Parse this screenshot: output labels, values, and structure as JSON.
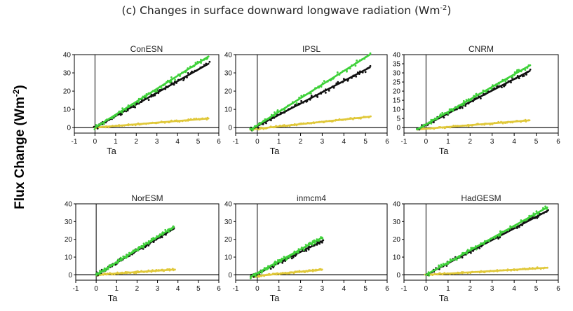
{
  "figure": {
    "title": "(c) Changes in surface downward longwave radiation (Wm",
    "title_sup": "-2",
    "title_end": ")",
    "ylabel": "Flux Change (Wm",
    "ylabel_sup": "-2",
    "ylabel_end": ")"
  },
  "colors": {
    "green": "#3fd13a",
    "black": "#111111",
    "yellow": "#e0c83a",
    "axis": "#000000"
  },
  "chart_data": [
    {
      "type": "scatter",
      "title": "ConESN",
      "xlabel": "Ta",
      "xlim": [
        -1,
        6
      ],
      "ylim": [
        -3,
        40
      ],
      "xticks": [
        -1,
        0,
        1,
        2,
        3,
        4,
        5,
        6
      ],
      "yticks": [
        0,
        10,
        20,
        30,
        40
      ],
      "series": [
        {
          "color": "green",
          "x": [
            0,
            5.5
          ],
          "y": [
            0,
            39
          ]
        },
        {
          "color": "black",
          "x": [
            0,
            5.5
          ],
          "y": [
            0,
            35
          ]
        },
        {
          "color": "yellow",
          "x": [
            0,
            5.5
          ],
          "y": [
            0,
            5
          ]
        }
      ]
    },
    {
      "type": "scatter",
      "title": "IPSL",
      "xlabel": "Ta",
      "xlim": [
        -1,
        6
      ],
      "ylim": [
        -3,
        40
      ],
      "xticks": [
        -1,
        0,
        1,
        2,
        3,
        4,
        5,
        6
      ],
      "yticks": [
        0,
        10,
        20,
        30,
        40
      ],
      "series": [
        {
          "color": "green",
          "x": [
            -0.3,
            5.2
          ],
          "y": [
            -1,
            40
          ]
        },
        {
          "color": "black",
          "x": [
            -0.3,
            5.2
          ],
          "y": [
            -1,
            33
          ]
        },
        {
          "color": "yellow",
          "x": [
            -0.3,
            5.2
          ],
          "y": [
            -1,
            6
          ]
        }
      ]
    },
    {
      "type": "scatter",
      "title": "CNRM",
      "xlabel": "Ta",
      "xlim": [
        -1,
        6
      ],
      "ylim": [
        -3,
        40
      ],
      "xticks": [
        -1,
        0,
        1,
        2,
        3,
        4,
        5,
        6
      ],
      "yticks": [
        0,
        5,
        10,
        15,
        20,
        25,
        30,
        35,
        40
      ],
      "series": [
        {
          "color": "green",
          "x": [
            -0.4,
            4.7
          ],
          "y": [
            -1,
            34
          ]
        },
        {
          "color": "black",
          "x": [
            -0.4,
            4.7
          ],
          "y": [
            -1,
            31
          ]
        },
        {
          "color": "yellow",
          "x": [
            -0.4,
            4.7
          ],
          "y": [
            -1,
            4
          ]
        }
      ]
    },
    {
      "type": "scatter",
      "title": "NorESM",
      "xlabel": "Ta",
      "xlim": [
        -1,
        6
      ],
      "ylim": [
        -3,
        40
      ],
      "xticks": [
        -1,
        0,
        1,
        2,
        3,
        4,
        5,
        6
      ],
      "yticks": [
        0,
        10,
        20,
        30,
        40
      ],
      "series": [
        {
          "color": "green",
          "x": [
            0,
            3.8
          ],
          "y": [
            0,
            27
          ]
        },
        {
          "color": "black",
          "x": [
            0,
            3.8
          ],
          "y": [
            0,
            26
          ]
        },
        {
          "color": "yellow",
          "x": [
            0,
            3.8
          ],
          "y": [
            0,
            3
          ]
        }
      ]
    },
    {
      "type": "scatter",
      "title": "inmcm4",
      "xlabel": "Ta",
      "xlim": [
        -1,
        6
      ],
      "ylim": [
        -3,
        40
      ],
      "xticks": [
        -1,
        0,
        1,
        2,
        3,
        4,
        5,
        6
      ],
      "yticks": [
        0,
        10,
        20,
        30,
        40
      ],
      "series": [
        {
          "color": "green",
          "x": [
            -0.3,
            3.0
          ],
          "y": [
            -1,
            21
          ]
        },
        {
          "color": "black",
          "x": [
            -0.3,
            3.0
          ],
          "y": [
            -1,
            19
          ]
        },
        {
          "color": "yellow",
          "x": [
            -0.3,
            3.0
          ],
          "y": [
            -1,
            3
          ]
        }
      ]
    },
    {
      "type": "scatter",
      "title": "HadGESM",
      "xlabel": "Ta",
      "xlim": [
        -1,
        6
      ],
      "ylim": [
        -3,
        40
      ],
      "xticks": [
        -1,
        0,
        1,
        2,
        3,
        4,
        5,
        6
      ],
      "yticks": [
        0,
        10,
        20,
        30,
        40
      ],
      "series": [
        {
          "color": "green",
          "x": [
            0,
            5.5
          ],
          "y": [
            0,
            38
          ]
        },
        {
          "color": "black",
          "x": [
            0,
            5.5
          ],
          "y": [
            0,
            36
          ]
        },
        {
          "color": "yellow",
          "x": [
            0,
            5.5
          ],
          "y": [
            0,
            4
          ]
        }
      ]
    }
  ]
}
